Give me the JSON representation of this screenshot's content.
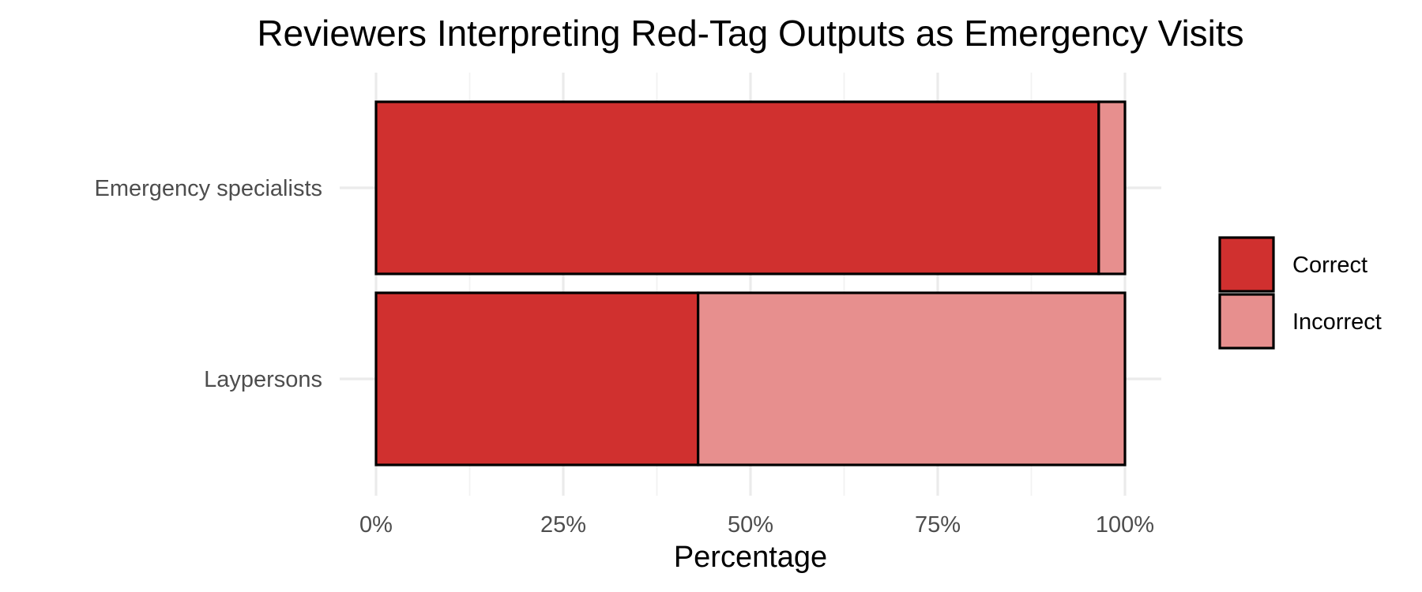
{
  "chart_data": {
    "type": "bar",
    "orientation": "horizontal",
    "stacked": true,
    "title": "Reviewers Interpreting Red-Tag Outputs as Emergency Visits",
    "xlabel": "Percentage",
    "ylabel": "",
    "xlim": [
      0,
      100
    ],
    "x_ticks": [
      0,
      25,
      50,
      75,
      100
    ],
    "x_tick_labels": [
      "0%",
      "25%",
      "50%",
      "75%",
      "100%"
    ],
    "grid": true,
    "legend_position": "right",
    "categories": [
      "Emergency specialists",
      "Laypersons"
    ],
    "series": [
      {
        "name": "Correct",
        "color": "#d0302f",
        "values": [
          96.5,
          43
        ]
      },
      {
        "name": "Incorrect",
        "color": "#e78f8e",
        "values": [
          3.5,
          57
        ]
      }
    ]
  }
}
